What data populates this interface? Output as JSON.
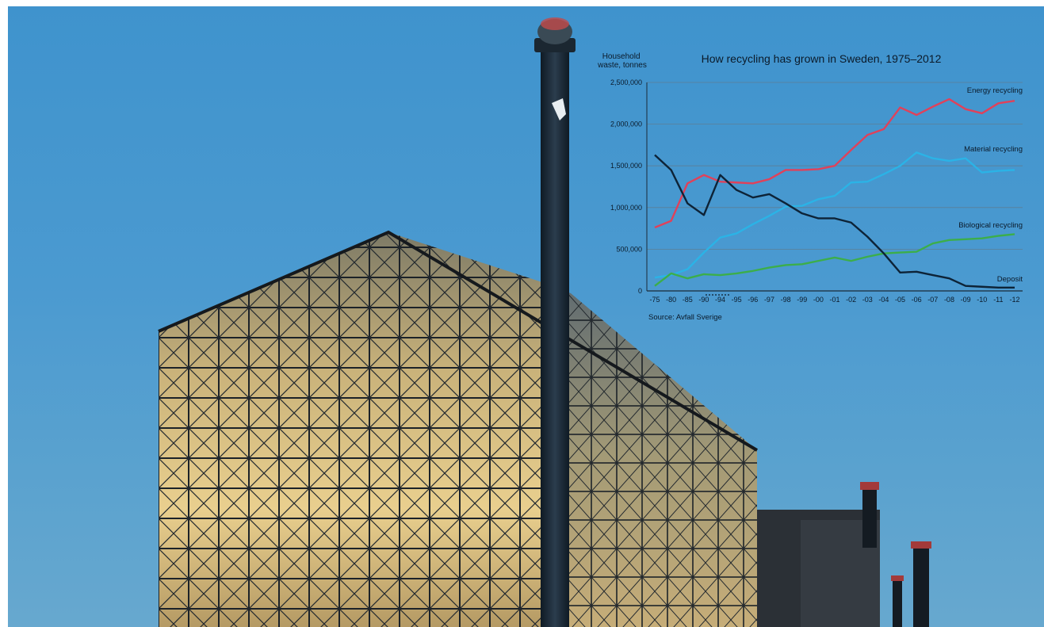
{
  "chart_data": {
    "type": "line",
    "title": "How recycling has grown in Sweden, 1975–2012",
    "ylabel_lines": [
      "Household",
      "waste, tonnes"
    ],
    "source": "Source: Avfall Sverige",
    "categories": [
      "-75",
      "-80",
      "-85",
      "-90",
      "-94",
      "-95",
      "-96",
      "-97",
      "-98",
      "-99",
      "-00",
      "-01",
      "-02",
      "-03",
      "-04",
      "-05",
      "-06",
      "-07",
      "-08",
      "-09",
      "-10",
      "-11",
      "-12"
    ],
    "y_ticks": [
      "0",
      "500,000",
      "1,000,000",
      "1,500,000",
      "2,000,000",
      "2,500,000"
    ],
    "y_tick_values": [
      0,
      500000,
      1000000,
      1500000,
      2000000,
      2500000
    ],
    "ylim": [
      0,
      2500000
    ],
    "grid": true,
    "series": [
      {
        "name": "Energy recycling",
        "color": "#e0415a",
        "values": [
          760000,
          840000,
          1290000,
          1390000,
          1310000,
          1300000,
          1290000,
          1340000,
          1450000,
          1450000,
          1460000,
          1500000,
          1690000,
          1870000,
          1940000,
          2200000,
          2110000,
          2210000,
          2300000,
          2180000,
          2130000,
          2250000,
          2280000
        ]
      },
      {
        "name": "Material recycling",
        "color": "#2bb3e6",
        "values": [
          160000,
          190000,
          260000,
          460000,
          640000,
          690000,
          800000,
          900000,
          1010000,
          1020000,
          1100000,
          1140000,
          1300000,
          1310000,
          1400000,
          1500000,
          1660000,
          1590000,
          1560000,
          1590000,
          1420000,
          1440000,
          1450000
        ]
      },
      {
        "name": "Biological recycling",
        "color": "#3cae4a",
        "values": [
          60000,
          210000,
          150000,
          200000,
          190000,
          210000,
          240000,
          280000,
          310000,
          320000,
          360000,
          400000,
          360000,
          410000,
          450000,
          460000,
          470000,
          570000,
          610000,
          620000,
          630000,
          660000,
          680000
        ]
      },
      {
        "name": "Deposit",
        "color": "#0d2337",
        "values": [
          1630000,
          1450000,
          1050000,
          910000,
          1390000,
          1210000,
          1120000,
          1160000,
          1050000,
          930000,
          870000,
          870000,
          820000,
          650000,
          450000,
          220000,
          230000,
          190000,
          150000,
          60000,
          50000,
          40000,
          40000
        ]
      }
    ]
  }
}
